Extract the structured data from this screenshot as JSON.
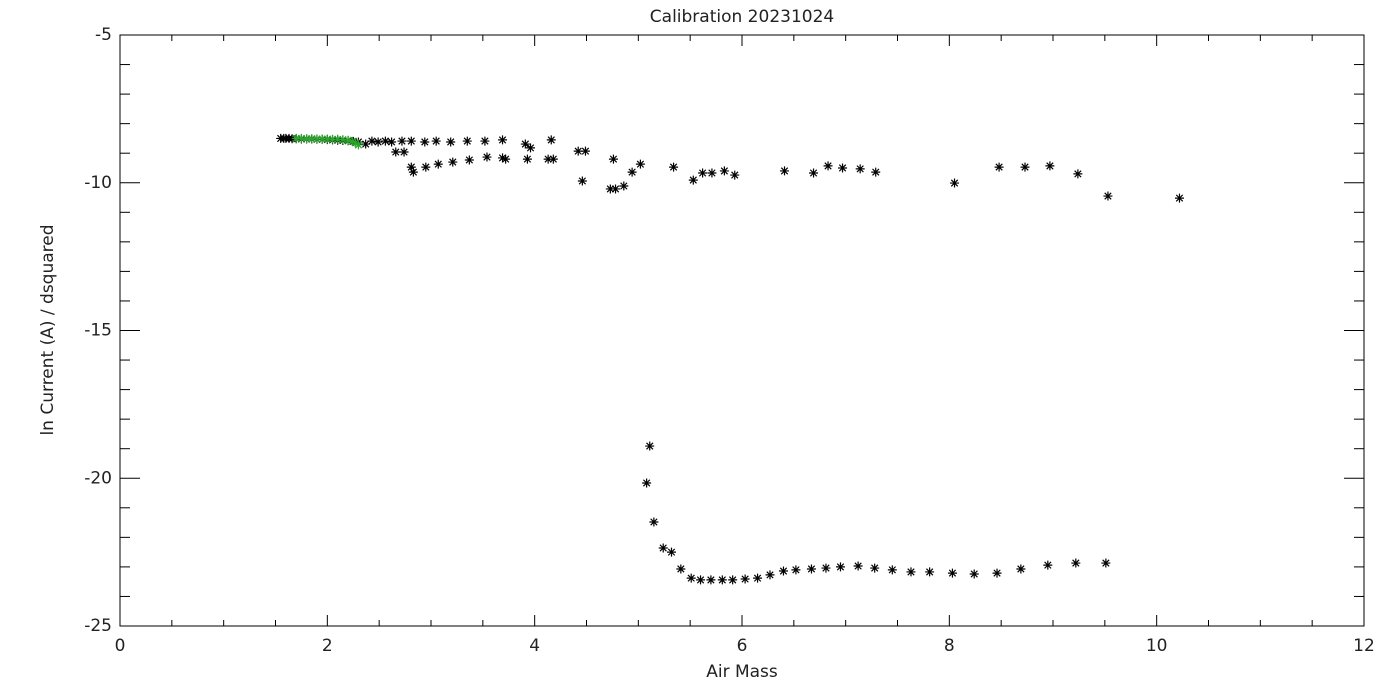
{
  "chart_data": {
    "type": "scatter",
    "title": "Calibration 20231024",
    "x_label": "Air Mass",
    "y_label": "ln Current (A) / dsquared",
    "xlim": [
      0,
      12
    ],
    "ylim": [
      -25,
      -5
    ],
    "xticks": [
      0,
      2,
      4,
      6,
      8,
      10,
      12
    ],
    "yticks": [
      -25,
      -20,
      -15,
      -10,
      -5
    ],
    "xminor": 4,
    "yminor": 5,
    "series": [
      {
        "color": "#000000",
        "x": [
          10.22,
          9.53,
          9.24,
          8.97,
          8.73,
          8.48,
          8.05,
          7.29,
          7.14,
          6.97,
          6.83,
          6.69,
          6.41,
          5.93,
          5.83,
          5.71,
          5.62,
          5.53,
          5.34,
          5.02,
          4.94,
          4.86,
          4.78,
          4.73,
          4.76,
          4.46,
          4.49,
          4.42,
          4.18,
          4.13,
          4.16,
          3.96,
          3.91,
          3.93,
          3.72,
          3.69,
          3.69,
          3.54,
          3.52,
          3.37,
          3.35,
          3.21,
          3.19,
          3.07,
          3.05,
          2.95,
          2.94,
          2.83,
          2.81,
          2.81,
          2.74,
          2.66,
          2.72,
          2.62,
          2.56,
          2.49,
          2.43,
          2.37,
          1.55,
          1.58,
          1.6,
          1.63,
          1.66,
          1.7,
          1.75,
          1.8,
          1.85,
          1.9,
          1.95,
          2.0,
          2.05,
          2.1,
          2.15,
          2.2,
          2.25,
          2.3,
          5.11,
          5.08,
          5.15,
          5.24,
          5.32,
          5.41,
          5.51,
          5.6,
          5.7,
          5.81,
          5.91,
          6.03,
          6.15,
          6.27,
          6.4,
          6.52,
          6.67,
          6.81,
          6.95,
          7.12,
          7.28,
          7.45,
          7.63,
          7.81,
          8.03,
          8.24,
          8.46,
          8.69,
          8.95,
          9.22,
          9.51
        ],
        "values": [
          -10.52,
          -10.45,
          -9.7,
          -9.43,
          -9.47,
          -9.47,
          -10.01,
          -9.64,
          -9.53,
          -9.5,
          -9.43,
          -9.67,
          -9.6,
          -9.74,
          -9.6,
          -9.67,
          -9.67,
          -9.91,
          -9.47,
          -9.37,
          -9.64,
          -10.11,
          -10.21,
          -10.21,
          -9.2,
          -9.94,
          -8.93,
          -8.93,
          -9.2,
          -9.2,
          -8.55,
          -8.82,
          -8.69,
          -9.2,
          -9.2,
          -9.16,
          -8.55,
          -9.13,
          -8.59,
          -9.23,
          -8.59,
          -9.3,
          -8.62,
          -9.37,
          -8.59,
          -9.47,
          -8.62,
          -9.64,
          -9.47,
          -8.59,
          -8.96,
          -8.96,
          -8.59,
          -8.62,
          -8.59,
          -8.62,
          -8.59,
          -8.69,
          -8.5,
          -8.5,
          -8.5,
          -8.5,
          -8.51,
          -8.51,
          -8.52,
          -8.52,
          -8.52,
          -8.53,
          -8.53,
          -8.54,
          -8.55,
          -8.56,
          -8.57,
          -8.58,
          -8.6,
          -8.62,
          -18.91,
          -20.16,
          -21.48,
          -22.36,
          -22.5,
          -23.07,
          -23.38,
          -23.44,
          -23.44,
          -23.44,
          -23.44,
          -23.41,
          -23.38,
          -23.27,
          -23.14,
          -23.1,
          -23.07,
          -23.04,
          -23.0,
          -22.97,
          -23.04,
          -23.1,
          -23.17,
          -23.17,
          -23.21,
          -23.24,
          -23.21,
          -23.07,
          -22.94,
          -22.87,
          -22.87
        ]
      },
      {
        "color": "#2aa52a",
        "x": [
          1.7,
          1.75,
          1.8,
          1.85,
          1.9,
          1.95,
          2.0,
          2.05,
          2.1,
          2.15,
          2.2,
          2.24,
          2.27,
          2.3
        ],
        "values": [
          -8.5,
          -8.5,
          -8.51,
          -8.51,
          -8.52,
          -8.52,
          -8.52,
          -8.53,
          -8.53,
          -8.54,
          -8.56,
          -8.6,
          -8.65,
          -8.72
        ]
      }
    ]
  }
}
